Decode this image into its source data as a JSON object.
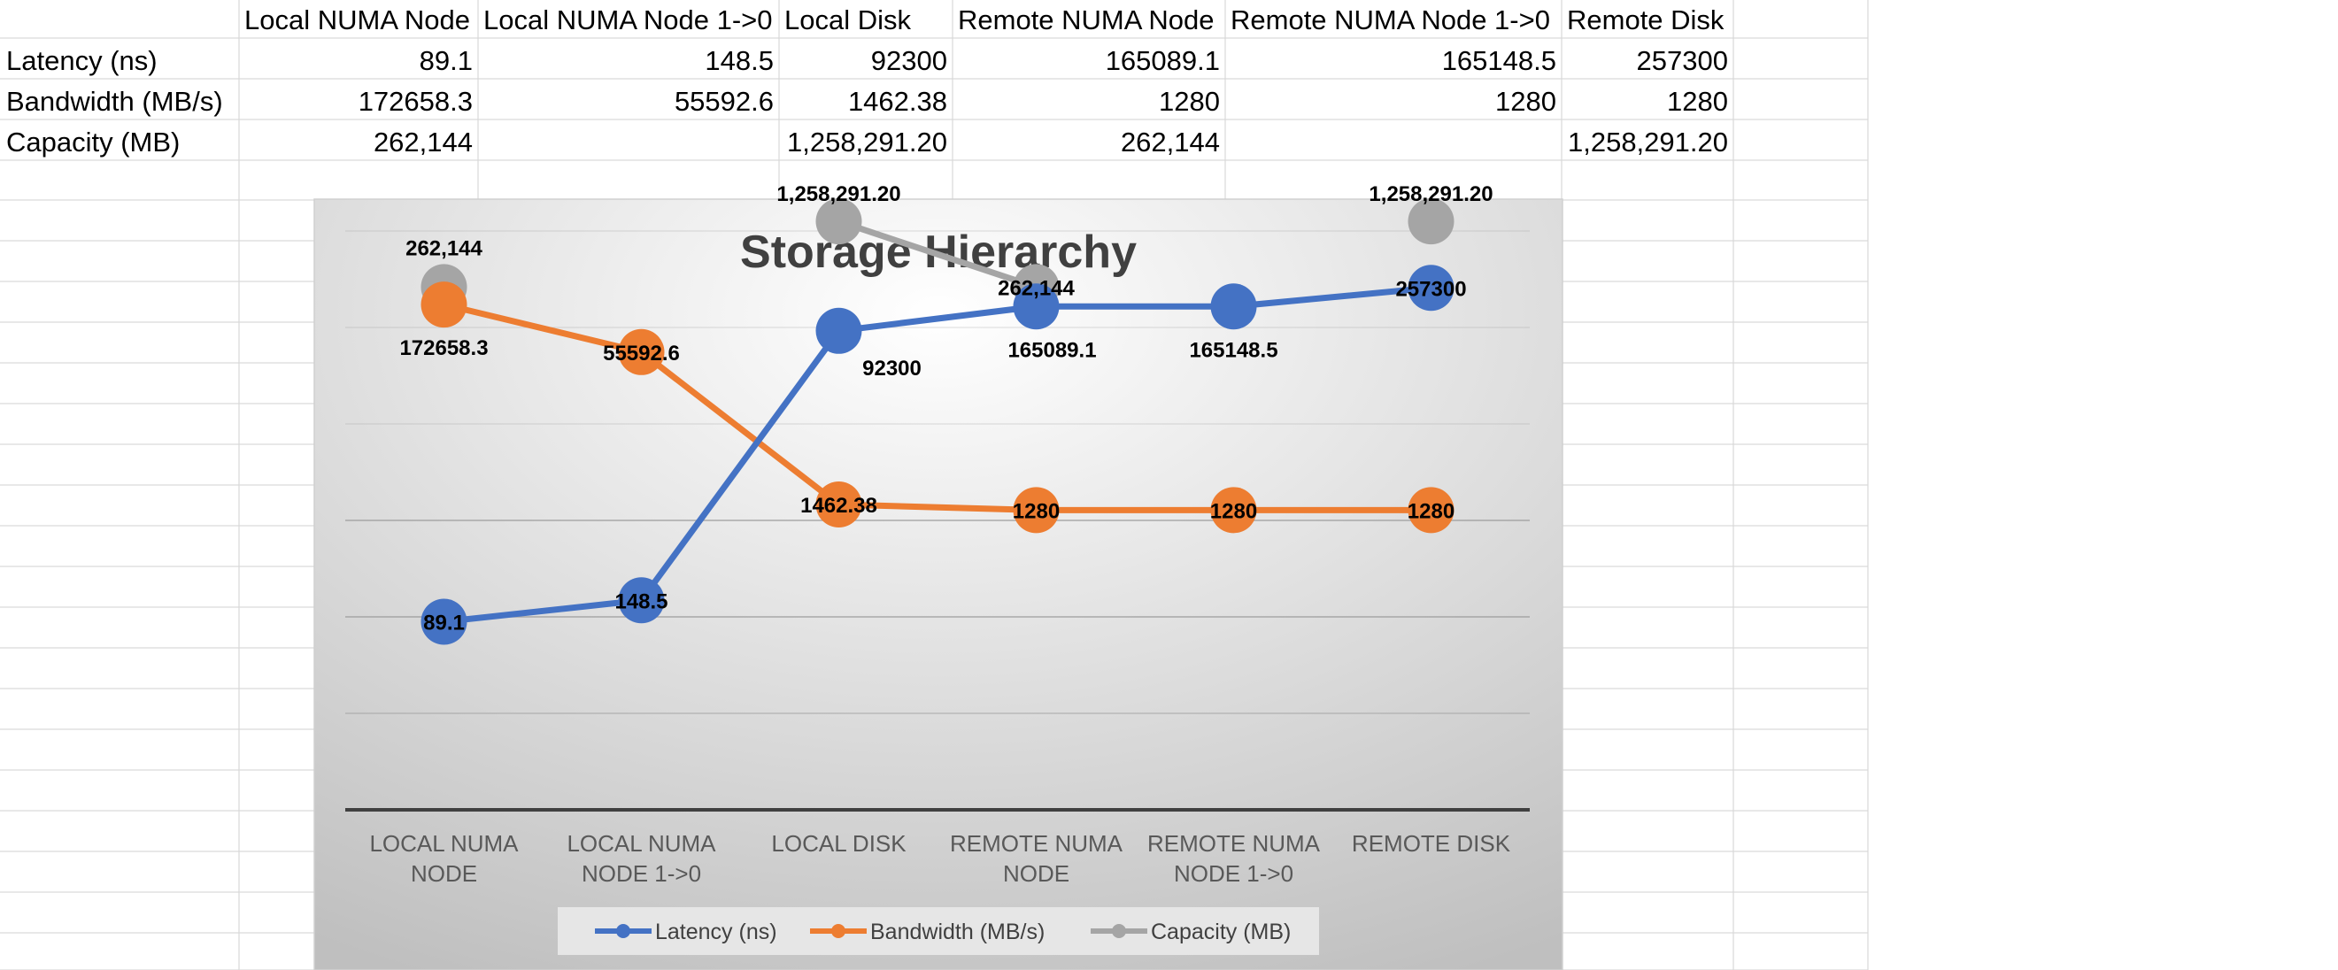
{
  "table": {
    "headers": [
      "",
      "Local NUMA Node",
      "Local NUMA Node 1->0",
      "Local Disk",
      "Remote NUMA Node",
      "Remote NUMA Node 1->0",
      "Remote Disk"
    ],
    "rows": [
      {
        "label": "Latency (ns)",
        "cells": [
          "89.1",
          "148.5",
          "92300",
          "165089.1",
          "165148.5",
          "257300"
        ]
      },
      {
        "label": "Bandwidth (MB/s)",
        "cells": [
          "172658.3",
          "55592.6",
          "1462.38",
          "1280",
          "1280",
          "1280"
        ]
      },
      {
        "label": "Capacity (MB)",
        "cells": [
          "262,144",
          "",
          "1,258,291.20",
          "262,144",
          "",
          "1,258,291.20"
        ]
      }
    ]
  },
  "chart_data": {
    "type": "line",
    "title": "Storage Hierarchy",
    "categories": [
      "LOCAL NUMA NODE",
      "LOCAL NUMA NODE 1->0",
      "LOCAL DISK",
      "REMOTE NUMA NODE",
      "REMOTE NUMA NODE 1->0",
      "REMOTE DISK"
    ],
    "scale": "log",
    "grid": true,
    "legend_position": "bottom",
    "series": [
      {
        "name": "Latency (ns)",
        "color": "#4472C4",
        "values": [
          89.1,
          148.5,
          92300,
          165089.1,
          165148.5,
          257300
        ],
        "labels": [
          "89.1",
          "148.5",
          "92300",
          "165089.1",
          "165148.5",
          "257300"
        ]
      },
      {
        "name": "Bandwidth (MB/s)",
        "color": "#ED7D31",
        "values": [
          172658.3,
          55592.6,
          1462.38,
          1280,
          1280,
          1280
        ],
        "labels": [
          "172658.3",
          "55592.6",
          "1462.38",
          "1280",
          "1280",
          "1280"
        ]
      },
      {
        "name": "Capacity (MB)",
        "color": "#A5A5A5",
        "values": [
          262144,
          null,
          1258291.2,
          262144,
          null,
          1258291.2
        ],
        "labels": [
          "262,144",
          "",
          "1,258,291.20",
          "262,144",
          "",
          "1,258,291.20"
        ]
      }
    ]
  }
}
